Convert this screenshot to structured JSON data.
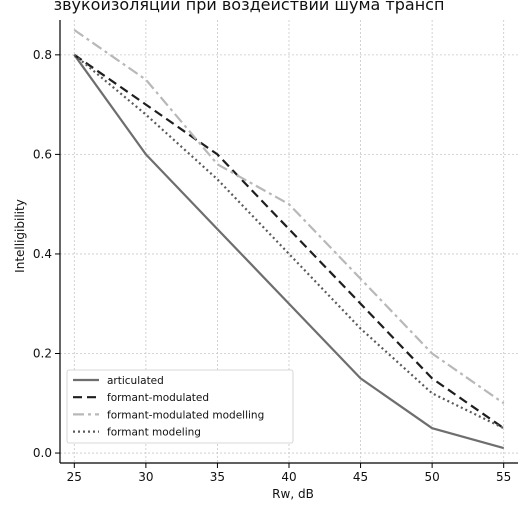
{
  "chart_data": {
    "type": "line",
    "title": "звукоизоляции при воздействии шума трансп",
    "xlabel": "Rw, dB",
    "ylabel": "Intelligibility",
    "x": [
      25,
      30,
      35,
      40,
      45,
      50,
      55
    ],
    "xlim": [
      24,
      56
    ],
    "ylim": [
      -0.02,
      0.87
    ],
    "xticks": [
      25,
      30,
      35,
      40,
      45,
      50,
      55
    ],
    "yticks": [
      0.0,
      0.2,
      0.4,
      0.6,
      0.8
    ],
    "grid": true,
    "legend_position": "lower-left",
    "series": [
      {
        "name": "articulated",
        "values": [
          0.8,
          0.6,
          0.45,
          0.3,
          0.15,
          0.05,
          0.01
        ],
        "color": "#6e6e6e",
        "dash": "solid"
      },
      {
        "name": "formant-modulated",
        "values": [
          0.8,
          0.7,
          0.6,
          0.45,
          0.3,
          0.15,
          0.05
        ],
        "color": "#1e1e1e",
        "dash": "dashed"
      },
      {
        "name": "formant-modulated modelling",
        "values": [
          0.85,
          0.75,
          0.58,
          0.5,
          0.35,
          0.2,
          0.1
        ],
        "color": "#b8b8b8",
        "dash": "dashdot"
      },
      {
        "name": "formant modeling",
        "values": [
          0.8,
          0.68,
          0.55,
          0.4,
          0.25,
          0.12,
          0.05
        ],
        "color": "#5a5a5a",
        "dash": "dotted"
      }
    ]
  }
}
